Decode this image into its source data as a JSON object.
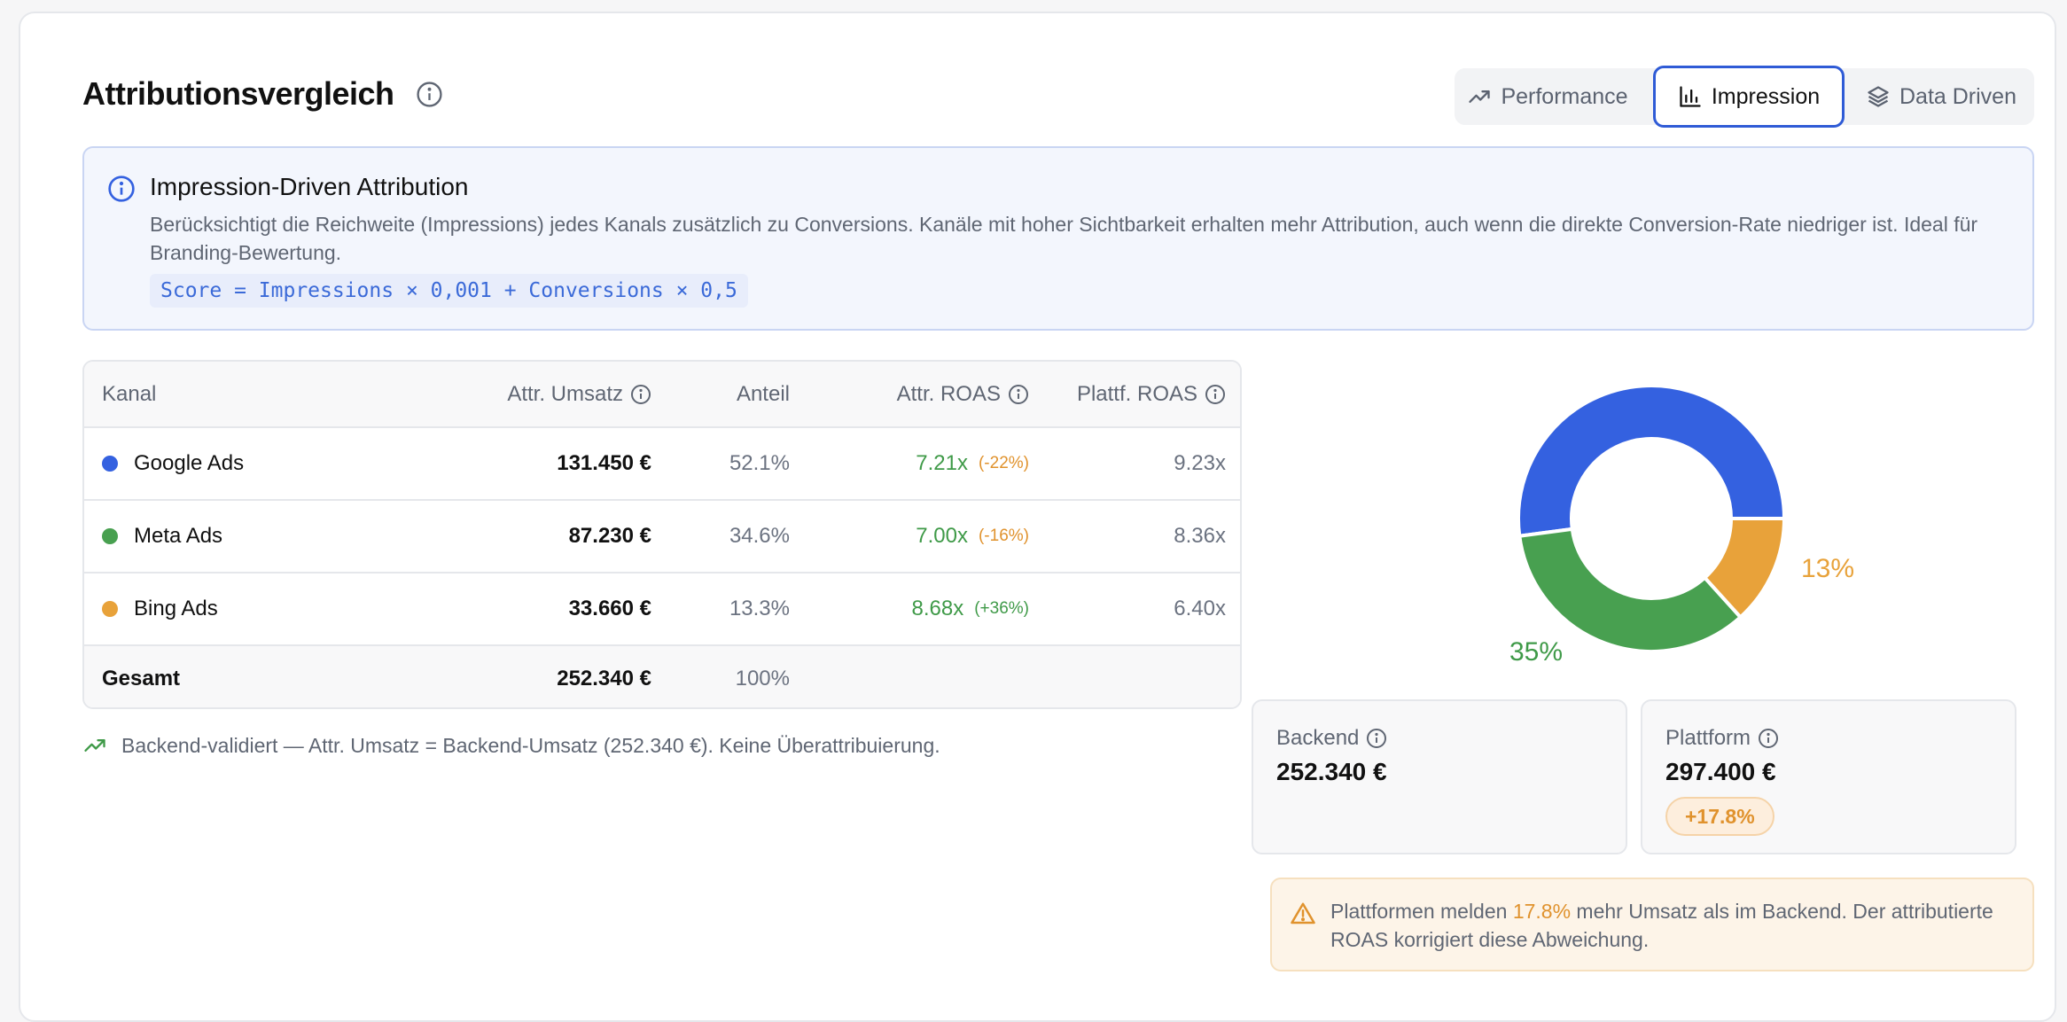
{
  "header": {
    "title": "Attributionsvergleich",
    "tabs": [
      {
        "label": "Performance",
        "icon": "trending-up-icon",
        "active": false
      },
      {
        "label": "Impression",
        "icon": "bar-chart-icon",
        "active": true
      },
      {
        "label": "Data Driven",
        "icon": "layers-icon",
        "active": false
      }
    ]
  },
  "info": {
    "title": "Impression-Driven Attribution",
    "description": "Berücksichtigt die Reichweite (Impressions) jedes Kanals zusätzlich zu Conversions. Kanäle mit hoher Sichtbarkeit erhalten mehr Attribution, auch wenn die direkte Conversion-Rate niedriger ist. Ideal für Branding-Bewertung.",
    "formula": "Score = Impressions × 0,001 + Conversions × 0,5"
  },
  "table": {
    "columns": [
      "Kanal",
      "Attr. Umsatz",
      "Anteil",
      "Attr. ROAS",
      "Plattf. ROAS"
    ],
    "rows": [
      {
        "kanal": "Google Ads",
        "color": "#3461e0",
        "umsatz": "131.450 €",
        "anteil": "52.1%",
        "roas": "7.21x",
        "delta": "(-22%)",
        "delta_color": "#e0922d",
        "plattf_roas": "9.23x"
      },
      {
        "kanal": "Meta Ads",
        "color": "#48a050",
        "umsatz": "87.230 €",
        "anteil": "34.6%",
        "roas": "7.00x",
        "delta": "(-16%)",
        "delta_color": "#e0922d",
        "plattf_roas": "8.36x"
      },
      {
        "kanal": "Bing Ads",
        "color": "#e8a23a",
        "umsatz": "33.660 €",
        "anteil": "13.3%",
        "roas": "8.68x",
        "delta": "(+36%)",
        "delta_color": "#3f9a48",
        "plattf_roas": "6.40x"
      }
    ],
    "total": {
      "label": "Gesamt",
      "umsatz": "252.340 €",
      "anteil": "100%"
    }
  },
  "footnote": "Backend-validiert — Attr. Umsatz = Backend-Umsatz (252.340 €). Keine Überattribuierung.",
  "chart_data": {
    "type": "pie",
    "donut": true,
    "categories": [
      "Google Ads",
      "Meta Ads",
      "Bing Ads"
    ],
    "values": [
      52.1,
      34.6,
      13.3
    ],
    "colors": [
      "#3461e0",
      "#48a050",
      "#e8a23a"
    ],
    "labels": [
      "",
      "35%",
      "13%"
    ]
  },
  "stats": {
    "backend": {
      "label": "Backend",
      "value": "252.340 €"
    },
    "plattform": {
      "label": "Plattform",
      "value": "297.400 €",
      "delta": "+17.8%"
    }
  },
  "warning": {
    "prefix": "Plattformen melden ",
    "highlight": "17.8%",
    "suffix": " mehr Umsatz als im Backend. Der attributierte ROAS korrigiert diese Abweichung."
  }
}
